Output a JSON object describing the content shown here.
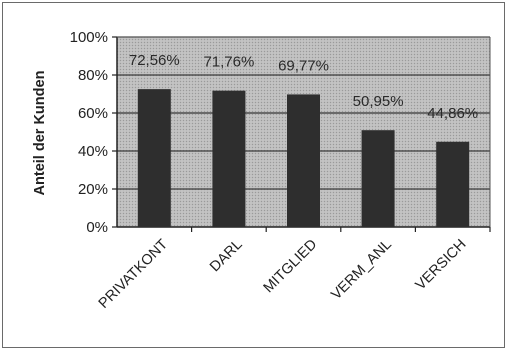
{
  "chart_data": {
    "type": "bar",
    "categories": [
      "PRIVATKONT",
      "DARL",
      "MITGLIED",
      "VERM_ANL",
      "VERSICH"
    ],
    "values": [
      72.56,
      71.76,
      69.77,
      50.95,
      44.86
    ],
    "data_labels": [
      "72,56%",
      "71,76%",
      "69,77%",
      "50,95%",
      "44,86%"
    ],
    "ylabel": "Anteil der Kunden",
    "ylim": [
      0,
      100
    ],
    "yticks": [
      "0%",
      "20%",
      "40%",
      "60%",
      "80%",
      "100%"
    ],
    "grid": true,
    "legend": "none",
    "colors": {
      "plot_background": "#bdbdbd",
      "bar": "#2e2e2e",
      "gridline": "#3a3a3a"
    }
  }
}
